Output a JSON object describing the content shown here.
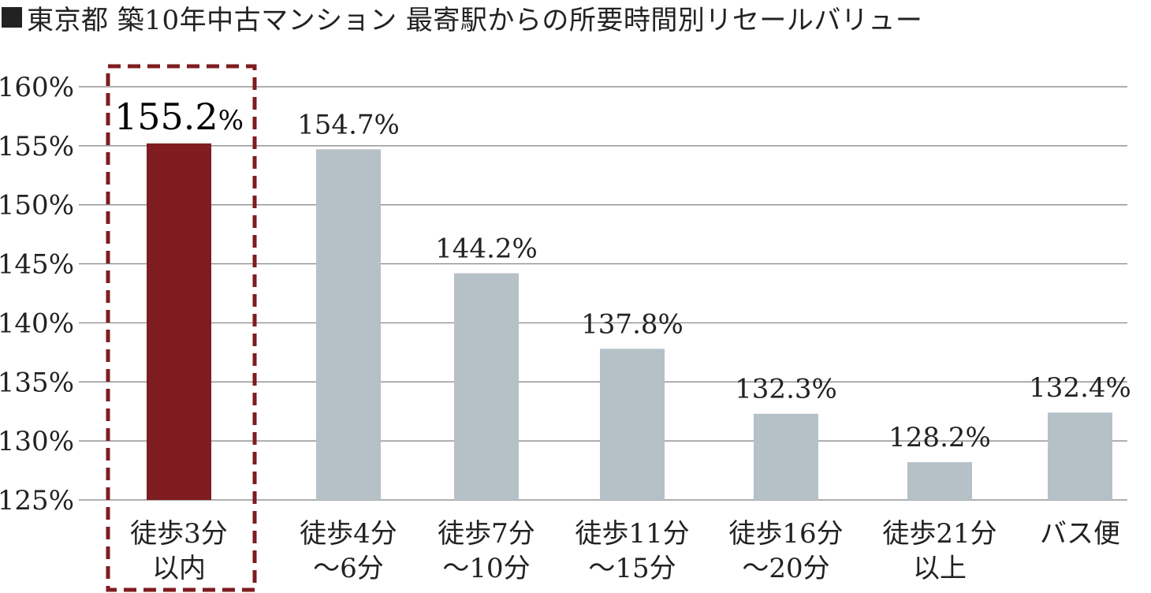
{
  "title": "東京都 築10年中古マンション 最寄駅からの所要時間別リセールバリュー",
  "colors": {
    "highlight": "#7e1c20",
    "normal": "#b5c0c7",
    "grid": "#7f7f7f",
    "text": "#222222"
  },
  "chart_data": {
    "type": "bar",
    "categories": [
      [
        "徒歩3分",
        "以内"
      ],
      [
        "徒歩4分",
        "〜6分"
      ],
      [
        "徒歩7分",
        "〜10分"
      ],
      [
        "徒歩11分",
        "〜15分"
      ],
      [
        "徒歩16分",
        "〜20分"
      ],
      [
        "徒歩21分",
        "以上"
      ],
      [
        "バス便"
      ]
    ],
    "values": [
      155.2,
      154.7,
      144.2,
      137.8,
      132.3,
      128.2,
      132.4
    ],
    "value_labels": [
      "155.2",
      "154.7%",
      "144.2%",
      "137.8%",
      "132.3%",
      "128.2%",
      "132.4%"
    ],
    "highlight_suffix": "%",
    "highlight_index": 0,
    "yticks": [
      "160%",
      "155%",
      "150%",
      "145%",
      "140%",
      "135%",
      "130%",
      "125%"
    ],
    "ylim": [
      125,
      160
    ],
    "grid": true,
    "legend": "none"
  }
}
